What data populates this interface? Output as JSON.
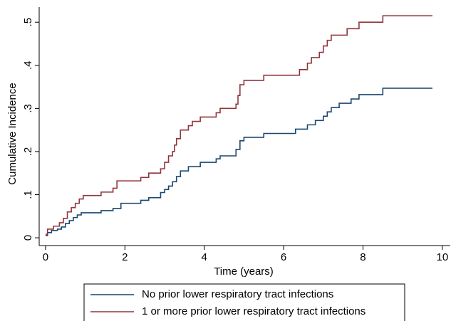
{
  "chart_data": {
    "type": "line",
    "step": "post",
    "xlabel": "Time (years)",
    "ylabel": "Cumulative Incidence",
    "xlim": [
      -0.16,
      10.2
    ],
    "ylim": [
      -0.018,
      0.535
    ],
    "xticks": [
      0,
      2,
      4,
      6,
      8,
      10
    ],
    "yticks": [
      0,
      {
        "value": 0.1,
        "label": ".1"
      },
      {
        "value": 0.2,
        "label": ".2"
      },
      {
        "value": 0.3,
        "label": ".3"
      },
      {
        "value": 0.4,
        "label": ".4"
      },
      {
        "value": 0.5,
        "label": ".5"
      }
    ],
    "legend": "bottom",
    "series": [
      {
        "name": "No prior lower respiratory tract infections",
        "color": "#1a476f",
        "x": [
          0,
          0.05,
          0.15,
          0.3,
          0.4,
          0.5,
          0.6,
          0.7,
          0.8,
          0.9,
          1.4,
          1.7,
          1.9,
          2.4,
          2.6,
          2.9,
          3.0,
          3.1,
          3.2,
          3.3,
          3.4,
          3.6,
          3.9,
          4.3,
          4.4,
          4.8,
          4.9,
          5.0,
          5.5,
          6.3,
          6.6,
          6.8,
          7.0,
          7.1,
          7.2,
          7.4,
          7.7,
          7.9,
          8.5,
          9.75
        ],
        "values": [
          0.005,
          0.012,
          0.017,
          0.02,
          0.025,
          0.033,
          0.04,
          0.047,
          0.053,
          0.058,
          0.063,
          0.068,
          0.08,
          0.087,
          0.093,
          0.105,
          0.112,
          0.12,
          0.13,
          0.142,
          0.155,
          0.165,
          0.175,
          0.183,
          0.19,
          0.205,
          0.225,
          0.233,
          0.242,
          0.252,
          0.262,
          0.272,
          0.282,
          0.292,
          0.302,
          0.312,
          0.322,
          0.332,
          0.347,
          0.347
        ]
      },
      {
        "name": "1 or more prior lower respiratory tract infections",
        "color": "#90353b",
        "x": [
          0,
          0.05,
          0.2,
          0.35,
          0.45,
          0.55,
          0.65,
          0.75,
          0.85,
          0.95,
          1.4,
          1.7,
          1.8,
          2.4,
          2.6,
          2.9,
          3.0,
          3.1,
          3.2,
          3.25,
          3.3,
          3.4,
          3.6,
          3.7,
          3.9,
          4.3,
          4.4,
          4.8,
          4.85,
          4.9,
          5.0,
          5.5,
          6.4,
          6.6,
          6.7,
          6.9,
          7.0,
          7.1,
          7.2,
          7.6,
          7.9,
          8.5,
          9.75
        ],
        "values": [
          0.008,
          0.02,
          0.027,
          0.035,
          0.045,
          0.06,
          0.07,
          0.08,
          0.09,
          0.098,
          0.106,
          0.115,
          0.132,
          0.14,
          0.15,
          0.16,
          0.175,
          0.19,
          0.2,
          0.215,
          0.23,
          0.25,
          0.26,
          0.27,
          0.28,
          0.29,
          0.3,
          0.31,
          0.33,
          0.355,
          0.365,
          0.377,
          0.39,
          0.405,
          0.418,
          0.43,
          0.445,
          0.458,
          0.47,
          0.485,
          0.5,
          0.515,
          0.515
        ]
      }
    ]
  }
}
